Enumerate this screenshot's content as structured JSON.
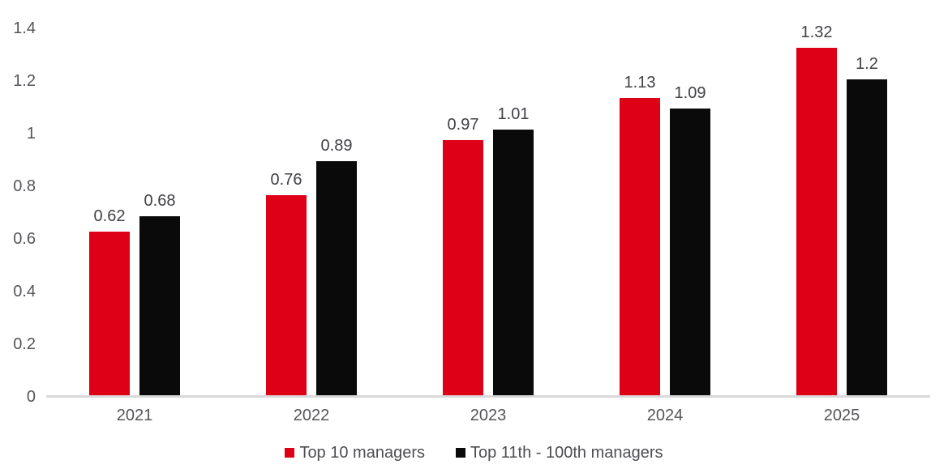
{
  "chart_data": {
    "type": "bar",
    "categories": [
      "2021",
      "2022",
      "2023",
      "2024",
      "2025"
    ],
    "series": [
      {
        "name": "Top 10 managers",
        "color": "#dd0016",
        "values": [
          0.62,
          0.76,
          0.97,
          1.13,
          1.32
        ],
        "labels": [
          "0.62",
          "0.76",
          "0.97",
          "1.13",
          "1.32"
        ]
      },
      {
        "name": "Top 11th - 100th managers",
        "color": "#0a0a0a",
        "values": [
          0.68,
          0.89,
          1.01,
          1.09,
          1.2
        ],
        "labels": [
          "0.68",
          "0.89",
          "1.01",
          "1.09",
          "1.2"
        ]
      }
    ],
    "title": "",
    "xlabel": "",
    "ylabel": "",
    "ylim": [
      0,
      1.4
    ],
    "yticks": [
      "0",
      "0.2",
      "0.4",
      "0.6",
      "0.8",
      "1",
      "1.2",
      "1.4"
    ],
    "ytick_values": [
      0,
      0.2,
      0.4,
      0.6,
      0.8,
      1,
      1.2,
      1.4
    ],
    "grid": false,
    "legend_position": "bottom"
  },
  "colors": {
    "background": "#ffffff",
    "axis_line": "#d9d9d9",
    "axis_text": "#555559",
    "data_label_text": "#404045",
    "series_red": "#dd0016",
    "series_black": "#0a0a0a"
  }
}
